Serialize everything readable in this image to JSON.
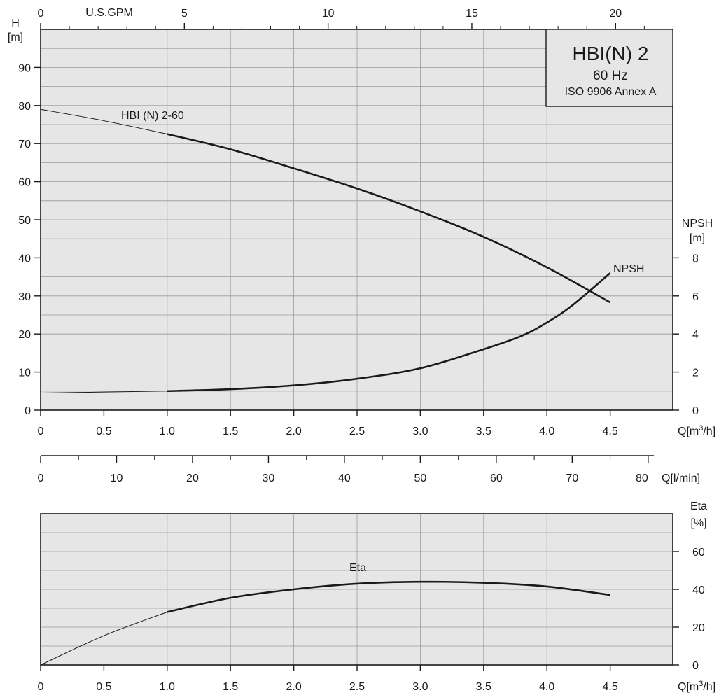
{
  "legend_box": {
    "model": "HBI(N) 2",
    "frequency": "60 Hz",
    "standard": "ISO 9906 Annex A"
  },
  "chart_data": [
    {
      "type": "line",
      "name": "head-chart",
      "x_axis": {
        "label": "Q[m³/h]",
        "range": [
          0,
          5.0
        ],
        "ticks": [
          0,
          0.5,
          1.0,
          1.5,
          2.0,
          2.5,
          3.0,
          3.5,
          4.0,
          4.5
        ],
        "tick_labels": [
          "0",
          "0.5",
          "1.0",
          "1.5",
          "2.0",
          "2.5",
          "3.0",
          "3.5",
          "4.0",
          "4.5"
        ]
      },
      "top_axis": {
        "label": "U.S.GPM",
        "ticks": [
          0,
          5,
          10,
          15,
          20
        ],
        "tick_labels": [
          "0",
          "5",
          "10",
          "15",
          "20"
        ]
      },
      "left_axis": {
        "label_top": "H",
        "label_unit": "[m]",
        "range": [
          0,
          100
        ],
        "ticks": [
          0,
          10,
          20,
          30,
          40,
          50,
          60,
          70,
          80,
          90
        ],
        "tick_labels": [
          "0",
          "10",
          "20",
          "30",
          "40",
          "50",
          "60",
          "70",
          "80",
          "90"
        ]
      },
      "right_axis": {
        "label_top": "NPSH",
        "label_unit": "[m]",
        "range": [
          0,
          20
        ],
        "ticks": [
          0,
          2,
          4,
          6,
          8
        ],
        "tick_labels": [
          "0",
          "2",
          "4",
          "6",
          "8"
        ]
      },
      "grid": true,
      "series": [
        {
          "name": "HBI (N) 2-60",
          "axis": "left",
          "x": [
            0,
            0.5,
            1.0,
            1.5,
            2.0,
            2.5,
            3.0,
            3.5,
            4.0,
            4.5
          ],
          "y": [
            79,
            76,
            72.5,
            68.5,
            63.5,
            58.2,
            52.2,
            45.5,
            37.5,
            28.3
          ]
        },
        {
          "name": "NPSH",
          "axis": "right",
          "x": [
            0,
            0.5,
            1.0,
            1.5,
            2.0,
            2.5,
            3.0,
            3.5,
            3.8,
            4.0,
            4.2,
            4.5
          ],
          "y": [
            0.9,
            0.95,
            1.0,
            1.1,
            1.3,
            1.65,
            2.2,
            3.2,
            3.9,
            4.6,
            5.5,
            7.2
          ]
        }
      ]
    },
    {
      "type": "axis",
      "name": "flow-axis-lmin",
      "x_axis": {
        "label": "Q[l/min]",
        "ticks": [
          0,
          10,
          20,
          30,
          40,
          50,
          60,
          70,
          80
        ],
        "tick_labels": [
          "0",
          "10",
          "20",
          "30",
          "40",
          "50",
          "60",
          "70",
          "80"
        ]
      }
    },
    {
      "type": "line",
      "name": "efficiency-chart",
      "x_axis": {
        "label": "Q[m³/h]",
        "range": [
          0,
          5.0
        ],
        "ticks": [
          0,
          0.5,
          1.0,
          1.5,
          2.0,
          2.5,
          3.0,
          3.5,
          4.0,
          4.5
        ],
        "tick_labels": [
          "0",
          "0.5",
          "1.0",
          "1.5",
          "2.0",
          "2.5",
          "3.0",
          "3.5",
          "4.0",
          "4.5"
        ]
      },
      "right_axis": {
        "label_top": "Eta",
        "label_unit": "[%]",
        "range": [
          0,
          80
        ],
        "ticks": [
          0,
          20,
          40,
          60
        ],
        "tick_labels": [
          "0",
          "20",
          "40",
          "60"
        ]
      },
      "grid": true,
      "series": [
        {
          "name": "Eta",
          "x": [
            0,
            0.5,
            1.0,
            1.5,
            2.0,
            2.5,
            3.0,
            3.5,
            4.0,
            4.5
          ],
          "y": [
            0,
            15.5,
            28,
            35.5,
            40,
            43,
            44,
            43.5,
            41.5,
            37
          ]
        }
      ]
    }
  ]
}
